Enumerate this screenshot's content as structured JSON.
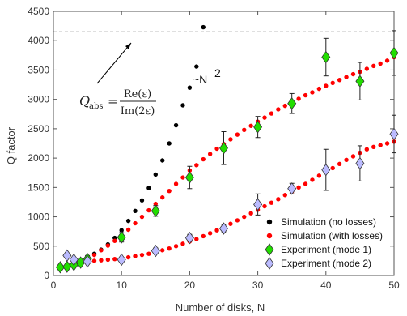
{
  "chart_data": {
    "type": "scatter",
    "title": "",
    "xlabel": "Number of disks, N",
    "ylabel": "Q factor",
    "xlim": [
      0,
      50
    ],
    "ylim": [
      0,
      4500
    ],
    "xticks": [
      0,
      10,
      20,
      30,
      40,
      50
    ],
    "yticks": [
      0,
      500,
      1000,
      1500,
      2000,
      2500,
      3000,
      3500,
      4000,
      4500
    ],
    "grid": false,
    "legend_position": "bottom-right",
    "reference_line": {
      "y": 4150,
      "style": "dashed"
    },
    "annotations": {
      "formula_lhs": "Q",
      "formula_sub": "abs",
      "formula_eq": "=",
      "formula_num": "Re(ε)",
      "formula_den": "Im(2ε)",
      "scaling": "~N",
      "scaling_exp": "2"
    },
    "series": [
      {
        "name": "Simulation (no losses)",
        "color": "#000000",
        "marker": "dot",
        "x": [
          1,
          2,
          3,
          4,
          5,
          6,
          7,
          8,
          9,
          10,
          11,
          12,
          13,
          14,
          15,
          16,
          17,
          18,
          19,
          20,
          21,
          22
        ],
        "y": [
          120,
          150,
          190,
          240,
          300,
          370,
          440,
          530,
          640,
          770,
          930,
          1100,
          1280,
          1490,
          1720,
          1960,
          2250,
          2560,
          2900,
          3200,
          3560,
          4230
        ]
      },
      {
        "name": "Simulation (with losses)",
        "color": "#ff0000",
        "marker": "dot",
        "x": [
          1,
          2,
          3,
          4,
          5,
          6,
          7,
          8,
          9,
          10,
          11,
          12,
          13,
          14,
          15,
          16,
          17,
          18,
          19,
          20,
          21,
          22,
          23,
          24,
          25,
          26,
          27,
          28,
          29,
          30,
          31,
          32,
          33,
          34,
          35,
          36,
          37,
          38,
          39,
          40,
          41,
          42,
          43,
          44,
          45,
          46,
          47,
          48,
          49,
          50
        ],
        "y": [
          100,
          140,
          180,
          230,
          280,
          350,
          430,
          510,
          590,
          680,
          780,
          890,
          1000,
          1110,
          1220,
          1330,
          1440,
          1560,
          1670,
          1790,
          1880,
          1980,
          2070,
          2160,
          2240,
          2320,
          2400,
          2480,
          2550,
          2620,
          2690,
          2760,
          2830,
          2890,
          2950,
          3010,
          3070,
          3120,
          3180,
          3230,
          3280,
          3330,
          3380,
          3430,
          3470,
          3520,
          3570,
          3610,
          3660,
          3720
        ]
      },
      {
        "name": "Experiment (mode 1)",
        "color": "#22dd00",
        "marker": "diamond",
        "x": [
          1,
          2,
          3,
          4,
          5,
          10,
          15,
          20,
          25,
          30,
          35,
          40,
          45,
          50
        ],
        "y": [
          140,
          150,
          180,
          220,
          280,
          650,
          1100,
          1670,
          2170,
          2530,
          2930,
          3720,
          3310,
          3790
        ],
        "err": [
          40,
          40,
          40,
          40,
          60,
          80,
          90,
          190,
          280,
          180,
          170,
          320,
          320,
          380
        ]
      },
      {
        "name": "Experiment (mode 2)",
        "color": "#bbbbff",
        "marker": "diamond",
        "x": [
          2,
          3,
          5,
          10,
          15,
          20,
          25,
          30,
          35,
          40,
          45,
          50
        ],
        "y": [
          340,
          270,
          240,
          270,
          420,
          640,
          800,
          1210,
          1480,
          1800,
          1910,
          2410
        ],
        "err": [
          30,
          30,
          30,
          40,
          50,
          60,
          70,
          180,
          90,
          350,
          300,
          320
        ]
      },
      {
        "name": "",
        "color": "#ff0000",
        "marker": "dot",
        "x": [
          5,
          6,
          7,
          8,
          9,
          10,
          11,
          12,
          13,
          14,
          15,
          16,
          17,
          18,
          19,
          20,
          21,
          22,
          23,
          24,
          25,
          26,
          27,
          28,
          29,
          30,
          31,
          32,
          33,
          34,
          35,
          36,
          37,
          38,
          39,
          40,
          41,
          42,
          43,
          44,
          45,
          46,
          47,
          48,
          49,
          50
        ],
        "y": [
          270,
          250,
          260,
          270,
          280,
          290,
          310,
          330,
          350,
          370,
          400,
          430,
          460,
          500,
          540,
          580,
          620,
          670,
          720,
          770,
          830,
          880,
          940,
          1000,
          1060,
          1120,
          1180,
          1240,
          1300,
          1370,
          1430,
          1500,
          1560,
          1630,
          1700,
          1760,
          1830,
          1900,
          1970,
          2030,
          2090,
          2150,
          2190,
          2220,
          2250,
          2280
        ]
      }
    ]
  }
}
